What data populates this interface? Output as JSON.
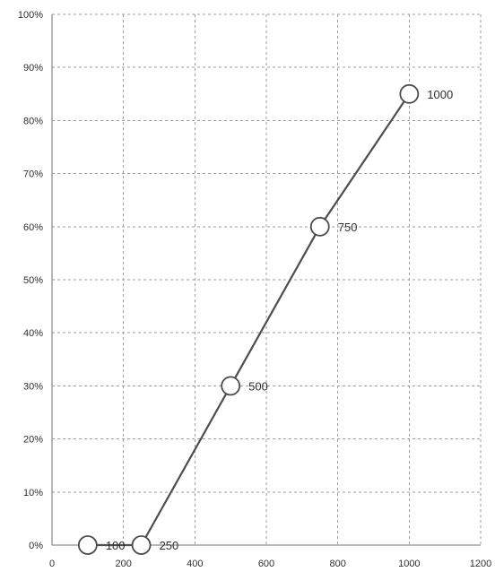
{
  "chart_data": {
    "type": "line",
    "x_ticks": [
      "0",
      "200",
      "400",
      "600",
      "800",
      "1000",
      "1200"
    ],
    "y_ticks": [
      "0%",
      "10%",
      "20%",
      "30%",
      "40%",
      "50%",
      "60%",
      "70%",
      "80%",
      "90%",
      "100%"
    ],
    "xlim": [
      0,
      1200
    ],
    "ylim": [
      0,
      100
    ],
    "grid": true,
    "series": [
      {
        "color": "#4d4d4d",
        "points": [
          {
            "x": 100,
            "y": 0,
            "label": "100"
          },
          {
            "x": 250,
            "y": 0,
            "label": "250"
          },
          {
            "x": 500,
            "y": 30,
            "label": "500"
          },
          {
            "x": 750,
            "y": 60,
            "label": "750"
          },
          {
            "x": 1000,
            "y": 85,
            "label": "1000"
          }
        ]
      }
    ]
  }
}
